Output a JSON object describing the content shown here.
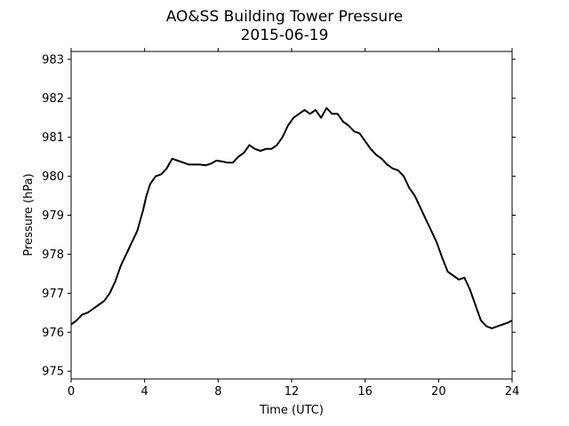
{
  "chart_data": {
    "type": "line",
    "title": "AO&SS Building Tower Pressure",
    "subtitle": "2015-06-19",
    "xlabel": "Time (UTC)",
    "ylabel": "Pressure (hPa)",
    "xlim": [
      0,
      24
    ],
    "ylim": [
      974.8,
      983.2
    ],
    "xticks": [
      0,
      4,
      8,
      12,
      16,
      20,
      24
    ],
    "xtick_labels": [
      "0",
      "4",
      "8",
      "12",
      "16",
      "20",
      "24"
    ],
    "yticks": [
      975,
      976,
      977,
      978,
      979,
      980,
      981,
      982,
      983
    ],
    "ytick_labels": [
      "975",
      "976",
      "977",
      "978",
      "979",
      "980",
      "981",
      "982",
      "983"
    ],
    "grid": false,
    "legend": "none",
    "series": [
      {
        "color": "#000000",
        "x": [
          0,
          0.3,
          0.6,
          0.9,
          1.2,
          1.5,
          1.8,
          2.1,
          2.4,
          2.7,
          3.0,
          3.3,
          3.6,
          3.9,
          4.1,
          4.3,
          4.6,
          4.9,
          5.2,
          5.5,
          5.8,
          6.1,
          6.4,
          6.7,
          7.0,
          7.3,
          7.6,
          7.9,
          8.2,
          8.5,
          8.8,
          9.1,
          9.4,
          9.7,
          10.0,
          10.3,
          10.6,
          10.9,
          11.2,
          11.5,
          11.8,
          12.1,
          12.4,
          12.7,
          13.0,
          13.3,
          13.6,
          13.9,
          14.2,
          14.5,
          14.8,
          15.1,
          15.4,
          15.7,
          16.0,
          16.3,
          16.6,
          16.9,
          17.2,
          17.5,
          17.8,
          18.1,
          18.4,
          18.7,
          19.0,
          19.3,
          19.6,
          19.9,
          20.2,
          20.5,
          20.8,
          21.1,
          21.4,
          21.7,
          22.0,
          22.3,
          22.6,
          22.9,
          23.2,
          23.5,
          23.8,
          24.0
        ],
        "y": [
          976.2,
          976.3,
          976.45,
          976.5,
          976.6,
          976.7,
          976.8,
          977.0,
          977.3,
          977.7,
          978.0,
          978.3,
          978.6,
          979.1,
          979.5,
          979.8,
          980.0,
          980.05,
          980.2,
          980.45,
          980.4,
          980.35,
          980.3,
          980.3,
          980.3,
          980.28,
          980.32,
          980.4,
          980.38,
          980.35,
          980.35,
          980.5,
          980.6,
          980.8,
          980.7,
          980.65,
          980.7,
          980.7,
          980.8,
          981.0,
          981.3,
          981.5,
          981.6,
          981.7,
          981.6,
          981.7,
          981.5,
          981.75,
          981.6,
          981.6,
          981.4,
          981.3,
          981.15,
          981.1,
          980.9,
          980.7,
          980.55,
          980.45,
          980.3,
          980.2,
          980.15,
          980.0,
          979.7,
          979.5,
          979.2,
          978.9,
          978.6,
          978.3,
          977.9,
          977.55,
          977.45,
          977.35,
          977.4,
          977.1,
          976.7,
          976.3,
          976.15,
          976.1,
          976.15,
          976.2,
          976.25,
          976.3
        ]
      }
    ]
  }
}
